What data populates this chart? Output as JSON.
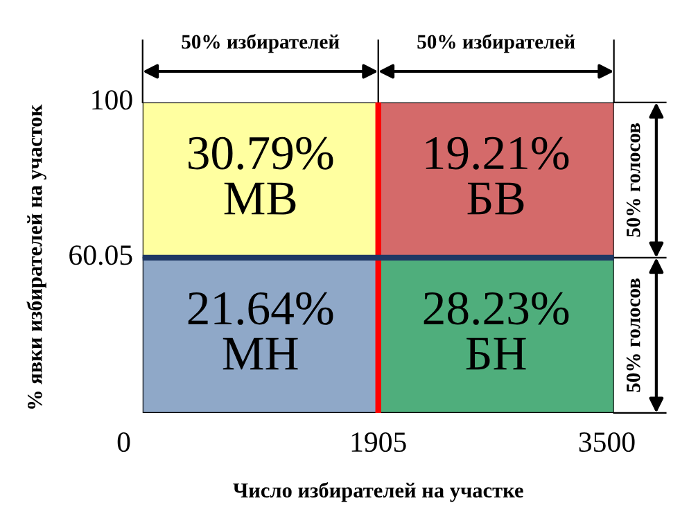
{
  "chart_data": {
    "type": "other",
    "xlabel": "Число избирателей на участке",
    "ylabel": "% явки избирателей на участок",
    "categories": [
      "МВ",
      "БВ",
      "МН",
      "БН"
    ],
    "values": [
      30.79,
      19.21,
      21.64,
      28.23
    ],
    "value_labels": [
      "30.79%",
      "19.21%",
      "21.64%",
      "28.23%"
    ],
    "colors": [
      "#ffffa0",
      "#d46a6a",
      "#8fa8c8",
      "#4fae7c"
    ],
    "annotations": [
      "50% избирателей",
      "50% избирателей",
      "50% голосов",
      "50% голосов",
      "0",
      "1905",
      "3500",
      "60.05",
      "100"
    ]
  }
}
